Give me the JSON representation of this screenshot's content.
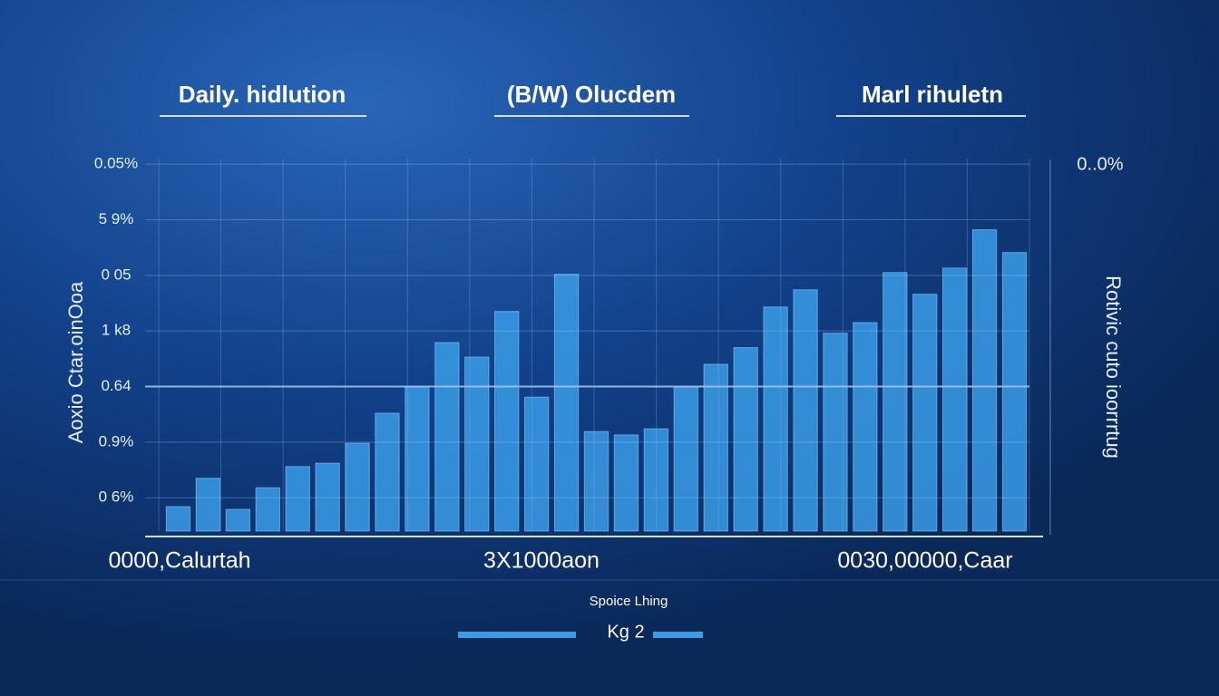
{
  "chart_data": {
    "type": "bar",
    "headers": [
      "Daily. hidlution",
      "(B/W) Olucdem",
      "Marl rihuletn"
    ],
    "ylabel": "Aoxio Ctar.oinOoa",
    "y2label": "Rotivic cuto ioorrrtug",
    "corner_label": "0..0%",
    "footer_labels": [
      "0000,Calurtah",
      "3X1000aon",
      "0030,00000,Caar"
    ],
    "legend_title": "Spoice Lhing",
    "categories": [
      null,
      null,
      null,
      null,
      null,
      null,
      null,
      null,
      null,
      null,
      null,
      null,
      null,
      null,
      null,
      null,
      null,
      null,
      null,
      null,
      null,
      null,
      null,
      null,
      null,
      null,
      null,
      null,
      null
    ],
    "series": [
      {
        "name": "Kg 2",
        "color": "#3a9ce6",
        "values": [
          0.44,
          0.95,
          0.39,
          0.78,
          1.16,
          1.22,
          1.58,
          2.12,
          2.59,
          3.39,
          3.13,
          3.95,
          2.41,
          4.62,
          1.79,
          1.73,
          1.84,
          2.59,
          3.0,
          3.3,
          4.03,
          4.34,
          3.56,
          3.75,
          4.65,
          4.26,
          4.73,
          5.42,
          5.01
        ]
      }
    ],
    "ylim": [
      0,
      6.7
    ],
    "yticks": [
      {
        "value": 0.6,
        "label": "0 6%"
      },
      {
        "value": 1.6,
        "label": "0.9%"
      },
      {
        "value": 2.6,
        "label": "0.64"
      },
      {
        "value": 3.6,
        "label": "1 k8"
      },
      {
        "value": 4.6,
        "label": "0 05"
      },
      {
        "value": 5.6,
        "label": "5 9%"
      },
      {
        "value": 6.6,
        "label": "0.05%"
      }
    ],
    "grid": true
  }
}
